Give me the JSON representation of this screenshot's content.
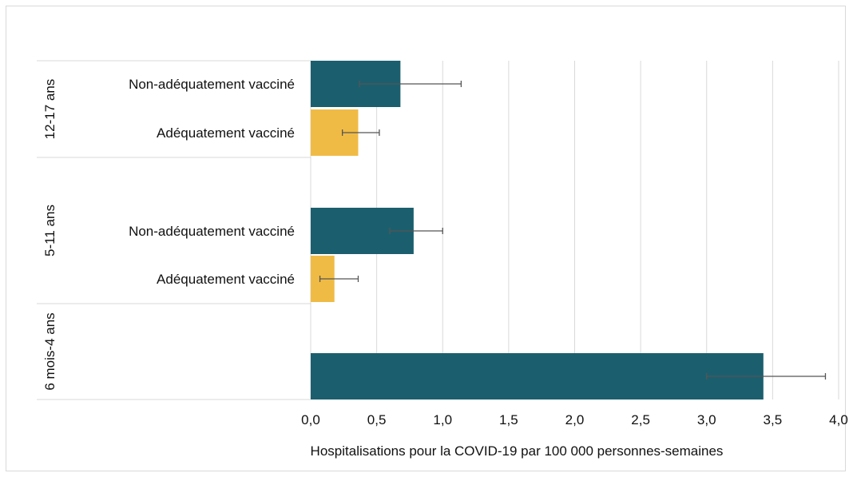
{
  "chart_data": {
    "type": "bar",
    "orientation": "horizontal",
    "title": "",
    "xlabel": "Hospitalisations pour la COVID-19 par 100 000 personnes-semaines",
    "ylabel": "",
    "xlim": [
      0,
      4
    ],
    "x_ticks": [
      "0,0",
      "0,5",
      "1,0",
      "1,5",
      "2,0",
      "2,5",
      "3,0",
      "3,5",
      "4,0"
    ],
    "grid": "vertical",
    "legend": "none",
    "colors": {
      "non_adequate": "#1b5f6e",
      "adequate": "#f0bb45",
      "error_bar": "#555555"
    },
    "groups": [
      {
        "label": "12-17 ans",
        "bars": [
          {
            "category": "Non-adéquatement vacciné",
            "value": 0.68,
            "ci_low": 0.37,
            "ci_high": 1.14,
            "color_key": "non_adequate"
          },
          {
            "category": "Adéquatement vacciné",
            "value": 0.36,
            "ci_low": 0.24,
            "ci_high": 0.52,
            "color_key": "adequate"
          }
        ]
      },
      {
        "label": "5-11 ans",
        "bars": [
          {
            "category": "Non-adéquatement vacciné",
            "value": 0.78,
            "ci_low": 0.6,
            "ci_high": 1.0,
            "color_key": "non_adequate"
          },
          {
            "category": "Adéquatement vacciné",
            "value": 0.18,
            "ci_low": 0.07,
            "ci_high": 0.36,
            "color_key": "adequate"
          }
        ]
      },
      {
        "label": "6 mois-4 ans",
        "bars": [
          {
            "category": "",
            "value": 3.43,
            "ci_low": 3.0,
            "ci_high": 3.9,
            "color_key": "non_adequate"
          }
        ]
      }
    ]
  }
}
